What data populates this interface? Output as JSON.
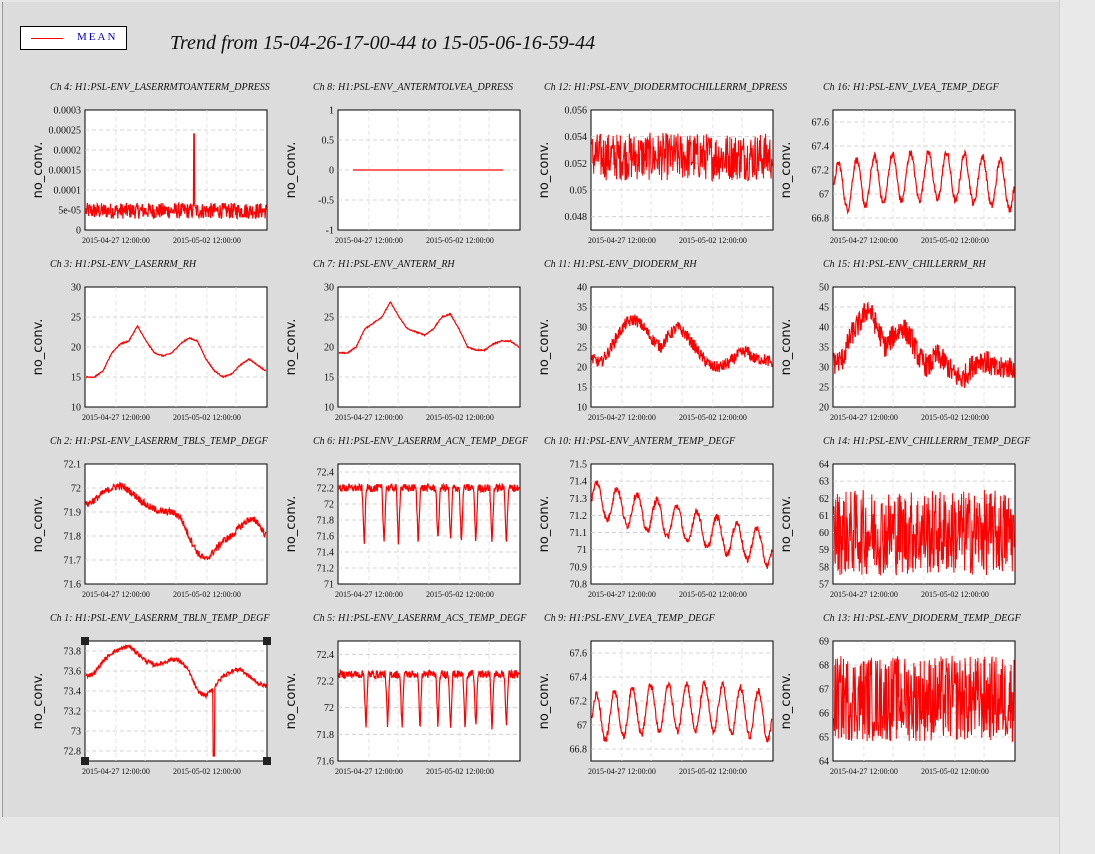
{
  "title": "Trend from 15-04-26-17-00-44 to 15-05-06-16-59-44",
  "legend": {
    "label": "MEAN",
    "color": "#ff0000"
  },
  "series_color": "#ff0000",
  "chart_data": [
    {
      "type": "line",
      "title": "Ch 4: H1:PSL-ENV_LASERRMTOANTERM_DPRESS",
      "ylabel": "no_conv.",
      "yticks": [
        "0.0003",
        "0.00025",
        "0.0002",
        "0.00015",
        "0.0001",
        "5e-05",
        "0"
      ],
      "ylim": [
        0,
        0.0003
      ],
      "xticks": [
        "2015-04-27 12:00:00",
        "2015-05-02 12:00:00"
      ],
      "shape": "noise",
      "base": 4e-05,
      "amp": 2.5e-05,
      "spike": 0.00024
    },
    {
      "type": "line",
      "title": "Ch 8: H1:PSL-ENV_ANTERMTOLVEA_DPRESS",
      "ylabel": "no_conv.",
      "yticks": [
        "1",
        "0.5",
        "0",
        "-0.5",
        "-1"
      ],
      "ylim": [
        -1,
        1
      ],
      "xticks": [
        "2015-04-27 12:00:00",
        "2015-05-02 12:00:00"
      ],
      "shape": "flat",
      "base": 0
    },
    {
      "type": "line",
      "title": "Ch 12: H1:PSL-ENV_DIODERMTOCHILLERRM_DPRESS",
      "ylabel": "no_conv.",
      "yticks": [
        "0.056",
        "0.054",
        "0.052",
        "0.05",
        "0.048"
      ],
      "ylim": [
        0.047,
        0.056
      ],
      "xticks": [
        "2015-04-27 12:00:00",
        "2015-05-02 12:00:00"
      ],
      "shape": "dense",
      "base": 0.0525,
      "amp": 0.0018
    },
    {
      "type": "line",
      "title": "Ch 16: H1:PSL-ENV_LVEA_TEMP_DEGF",
      "ylabel": "no_conv.",
      "yticks": [
        "67.6",
        "67.4",
        "67.2",
        "67",
        "66.8"
      ],
      "ylim": [
        66.7,
        67.7
      ],
      "xticks": [
        "2015-04-27 12:00:00",
        "2015-05-02 12:00:00"
      ],
      "shape": "osc",
      "base": 67.05,
      "amp": 0.2,
      "cycles": 10
    },
    {
      "type": "line",
      "title": "Ch 3: H1:PSL-ENV_LASERRM_RH",
      "ylabel": "no_conv.",
      "yticks": [
        "30",
        "25",
        "20",
        "15",
        "10"
      ],
      "ylim": [
        10,
        30
      ],
      "xticks": [
        "2015-04-27 12:00:00",
        "2015-05-02 12:00:00"
      ],
      "shape": "hump",
      "pts": [
        15,
        15,
        16,
        19,
        20.5,
        21,
        23.5,
        21,
        19,
        18.5,
        19,
        20.5,
        21.5,
        21,
        18,
        16,
        15,
        15.5,
        17,
        18,
        17,
        16
      ]
    },
    {
      "type": "line",
      "title": "Ch 7: H1:PSL-ENV_ANTERM_RH",
      "ylabel": "no_conv.",
      "yticks": [
        "30",
        "25",
        "20",
        "15",
        "10"
      ],
      "ylim": [
        10,
        30
      ],
      "xticks": [
        "2015-04-27 12:00:00",
        "2015-05-02 12:00:00"
      ],
      "shape": "hump",
      "pts": [
        19,
        19,
        20,
        23,
        24,
        25,
        27.5,
        25,
        23,
        22.5,
        22,
        23,
        25,
        25.5,
        23,
        20,
        19.5,
        19.5,
        20.5,
        21,
        21,
        20
      ]
    },
    {
      "type": "line",
      "title": "Ch 11: H1:PSL-ENV_DIODERM_RH",
      "ylabel": "no_conv.",
      "yticks": [
        "40",
        "35",
        "30",
        "25",
        "20",
        "15",
        "10"
      ],
      "ylim": [
        10,
        40
      ],
      "xticks": [
        "2015-04-27 12:00:00",
        "2015-05-02 12:00:00"
      ],
      "shape": "humpnoise",
      "pts": [
        22,
        21,
        24,
        28,
        31,
        32,
        30,
        27,
        25,
        28,
        30,
        28,
        25,
        22,
        20,
        20,
        21,
        23,
        24,
        22,
        22,
        21
      ],
      "amp": 1.5
    },
    {
      "type": "line",
      "title": "Ch 15: H1:PSL-ENV_CHILLERRM_RH",
      "ylabel": "no_conv.",
      "yticks": [
        "50",
        "45",
        "40",
        "35",
        "30",
        "25",
        "20"
      ],
      "ylim": [
        20,
        50
      ],
      "xticks": [
        "2015-04-27 12:00:00",
        "2015-05-02 12:00:00"
      ],
      "shape": "humpnoise",
      "pts": [
        31,
        32,
        38,
        41,
        45,
        40,
        35,
        38,
        40,
        37,
        32,
        30,
        33,
        31,
        28,
        27,
        30,
        32,
        31,
        29,
        30,
        30
      ],
      "amp": 3
    },
    {
      "type": "line",
      "title": "Ch 2: H1:PSL-ENV_LASERRM_TBLS_TEMP_DEGF",
      "ylabel": "no_conv.",
      "yticks": [
        "72.1",
        "72",
        "71.9",
        "71.8",
        "71.7",
        "71.6"
      ],
      "ylim": [
        71.6,
        72.1
      ],
      "xticks": [
        "2015-04-27 12:00:00",
        "2015-05-02 12:00:00"
      ],
      "shape": "humpnoise",
      "pts": [
        71.93,
        71.95,
        71.98,
        72.0,
        72.01,
        71.99,
        71.96,
        71.93,
        71.91,
        71.9,
        71.9,
        71.88,
        71.8,
        71.73,
        71.7,
        71.74,
        71.78,
        71.8,
        71.84,
        71.87,
        71.86,
        71.8
      ],
      "amp": 0.015
    },
    {
      "type": "line",
      "title": "Ch 6: H1:PSL-ENV_LASERRM_ACN_TEMP_DEGF",
      "ylabel": "no_conv.",
      "yticks": [
        "72.4",
        "72.2",
        "72",
        "71.8",
        "71.6",
        "71.4",
        "71.2",
        "71"
      ],
      "ylim": [
        71,
        72.5
      ],
      "xticks": [
        "2015-04-27 12:00:00",
        "2015-05-02 12:00:00"
      ],
      "shape": "dips",
      "base": 72.2,
      "amp": 0.05,
      "dips": [
        0.14,
        0.25,
        0.33,
        0.44,
        0.55,
        0.62,
        0.68,
        0.76,
        0.85,
        0.93
      ],
      "depth": 0.7
    },
    {
      "type": "line",
      "title": "Ch 10: H1:PSL-ENV_ANTERM_TEMP_DEGF",
      "ylabel": "no_conv.",
      "yticks": [
        "71.5",
        "71.4",
        "71.3",
        "71.2",
        "71.1",
        "71",
        "70.9",
        "70.8"
      ],
      "ylim": [
        70.8,
        71.5
      ],
      "xticks": [
        "2015-04-27 12:00:00",
        "2015-05-02 12:00:00"
      ],
      "shape": "oscdrift",
      "base": 71.3,
      "drift": -0.3,
      "amp": 0.1,
      "cycles": 9
    },
    {
      "type": "line",
      "title": "Ch 14: H1:PSL-ENV_CHILLERRM_TEMP_DEGF",
      "ylabel": "no_conv.",
      "yticks": [
        "64",
        "63",
        "62",
        "61",
        "60",
        "59",
        "58",
        "57"
      ],
      "ylim": [
        57,
        64
      ],
      "xticks": [
        "2015-04-27 12:00:00",
        "2015-05-02 12:00:00"
      ],
      "shape": "dense",
      "base": 60,
      "amp": 2.5
    },
    {
      "type": "line",
      "title": "Ch 1: H1:PSL-ENV_LASERRM_TBLN_TEMP_DEGF",
      "ylabel": "no_conv.",
      "yticks": [
        "73.8",
        "73.6",
        "73.4",
        "73.2",
        "73",
        "72.8"
      ],
      "ylim": [
        72.7,
        73.9
      ],
      "xticks": [
        "2015-04-27 12:00:00",
        "2015-05-02 12:00:00"
      ],
      "shape": "humpnoise",
      "pts": [
        73.55,
        73.58,
        73.7,
        73.78,
        73.82,
        73.85,
        73.78,
        73.7,
        73.66,
        73.68,
        73.72,
        73.7,
        73.6,
        73.4,
        73.35,
        73.45,
        73.55,
        73.6,
        73.62,
        73.55,
        73.48,
        73.45
      ],
      "amp": 0.02,
      "spikedown": 0.72
    },
    {
      "type": "line",
      "title": "Ch 5: H1:PSL-ENV_LASERRM_ACS_TEMP_DEGF",
      "ylabel": "no_conv.",
      "yticks": [
        "72.4",
        "72.2",
        "72",
        "71.8",
        "71.6"
      ],
      "ylim": [
        71.6,
        72.5
      ],
      "xticks": [
        "2015-04-27 12:00:00",
        "2015-05-02 12:00:00"
      ],
      "shape": "dips",
      "base": 72.25,
      "amp": 0.03,
      "dips": [
        0.15,
        0.27,
        0.35,
        0.45,
        0.55,
        0.62,
        0.7,
        0.76,
        0.85,
        0.93
      ],
      "depth": 0.4
    },
    {
      "type": "line",
      "title": "Ch 9: H1:PSL-ENV_LVEA_TEMP_DEGF",
      "ylabel": "no_conv.",
      "yticks": [
        "67.6",
        "67.4",
        "67.2",
        "67",
        "66.8"
      ],
      "ylim": [
        66.7,
        67.7
      ],
      "xticks": [
        "2015-04-27 12:00:00",
        "2015-05-02 12:00:00"
      ],
      "shape": "osc",
      "base": 67.05,
      "amp": 0.2,
      "cycles": 10
    },
    {
      "type": "line",
      "title": "Ch 13: H1:PSL-ENV_DIODERM_TEMP_DEGF",
      "ylabel": "no_conv.",
      "yticks": [
        "69",
        "68",
        "67",
        "66",
        "65",
        "64"
      ],
      "ylim": [
        64,
        69
      ],
      "xticks": [
        "2015-04-27 12:00:00",
        "2015-05-02 12:00:00"
      ],
      "shape": "dense",
      "base": 66.6,
      "amp": 1.8
    }
  ]
}
